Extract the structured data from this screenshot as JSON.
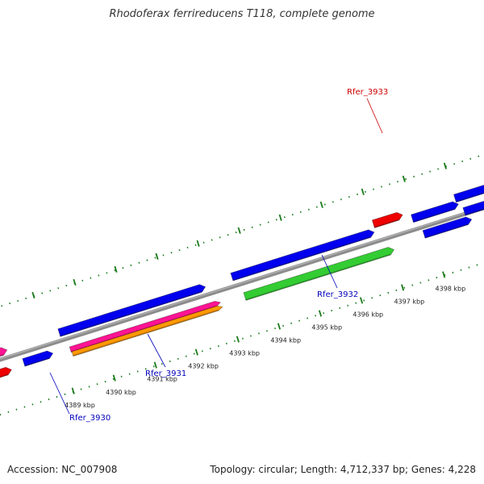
{
  "title": "Rhodoferax ferrireducens T118, complete genome",
  "footer": {
    "accession": "Accession: NC_007908",
    "stats": "Topology: circular; Length: 4,712,337 bp; Genes: 4,228"
  },
  "colors": {
    "blue": "#0000ee",
    "red": "#ee0000",
    "green": "#33cc33",
    "pink": "#ff1493",
    "orange": "#ff9900",
    "backbone": "#8c8c8c",
    "tick": "#1a7a1a",
    "label_blue": "#0000bb",
    "label_red": "#cc0000"
  },
  "ticks": [
    {
      "label": "4389 kbp"
    },
    {
      "label": "4390 kbp"
    },
    {
      "label": "4391 kbp"
    },
    {
      "label": "4392 kbp"
    },
    {
      "label": "4393 kbp"
    },
    {
      "label": "4394 kbp"
    },
    {
      "label": "4395 kbp"
    },
    {
      "label": "4396 kbp"
    },
    {
      "label": "4397 kbp"
    },
    {
      "label": "4398 kbp"
    }
  ],
  "gene_labels": [
    {
      "name": "Rfer_3930",
      "color": "label_blue"
    },
    {
      "name": "Rfer_3931",
      "color": "label_blue"
    },
    {
      "name": "Rfer_3932",
      "color": "label_blue"
    },
    {
      "name": "Rfer_3933",
      "color": "label_red"
    }
  ],
  "features": [
    {
      "color": "pink"
    },
    {
      "color": "red"
    },
    {
      "color": "blue"
    },
    {
      "color": "blue"
    },
    {
      "color": "pink"
    },
    {
      "color": "orange"
    },
    {
      "color": "blue"
    },
    {
      "color": "green"
    },
    {
      "color": "red"
    },
    {
      "color": "blue"
    },
    {
      "color": "blue"
    },
    {
      "color": "blue"
    },
    {
      "color": "blue"
    }
  ]
}
